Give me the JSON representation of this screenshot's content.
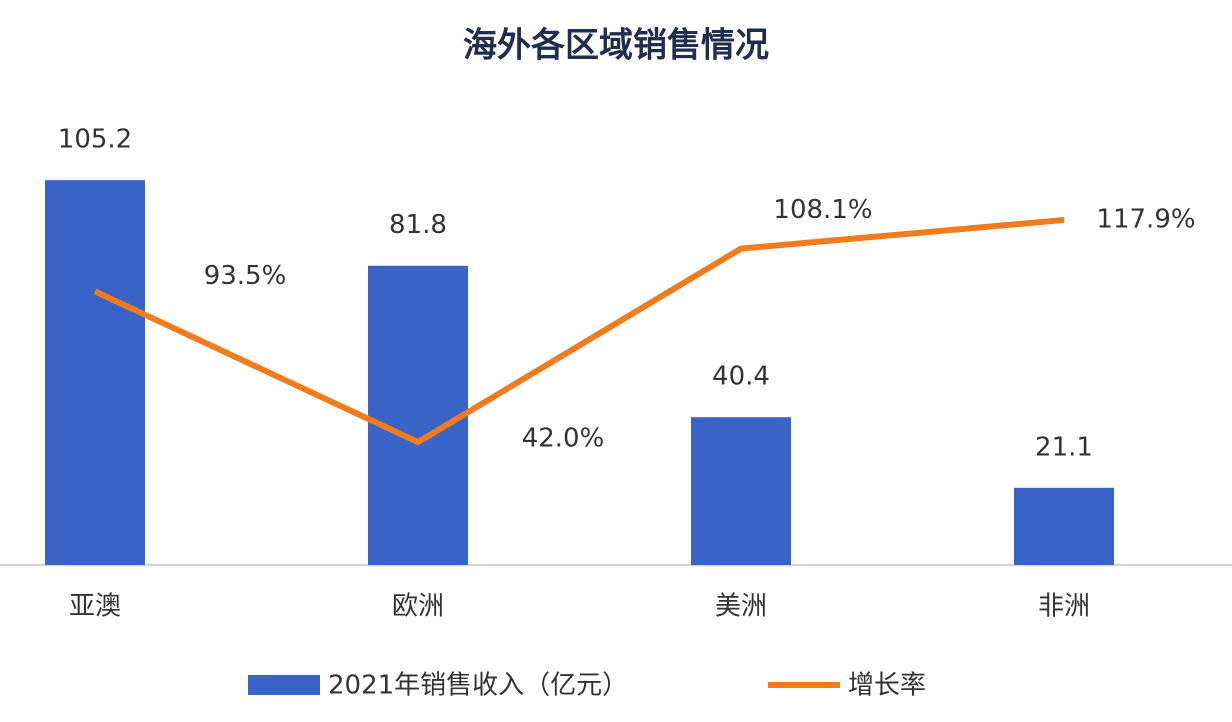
{
  "chart_data": {
    "type": "bar_line",
    "title": "海外各区域销售情况",
    "categories": [
      "亚澳",
      "欧洲",
      "美洲",
      "非洲"
    ],
    "series": [
      {
        "name": "2021年销售收入（亿元）",
        "type": "bar",
        "color": "#3a63c8",
        "values": [
          105.2,
          81.8,
          40.4,
          21.1
        ]
      },
      {
        "name": "增长率",
        "type": "line",
        "axis": "y2",
        "color": "#f07c1e",
        "values": [
          93.5,
          42.0,
          108.1,
          117.9
        ],
        "value_labels": [
          "93.5%",
          "42.0%",
          "108.1%",
          "117.9%"
        ]
      }
    ],
    "ylim": [
      0,
      120
    ],
    "y2lim": [
      0,
      150
    ]
  }
}
